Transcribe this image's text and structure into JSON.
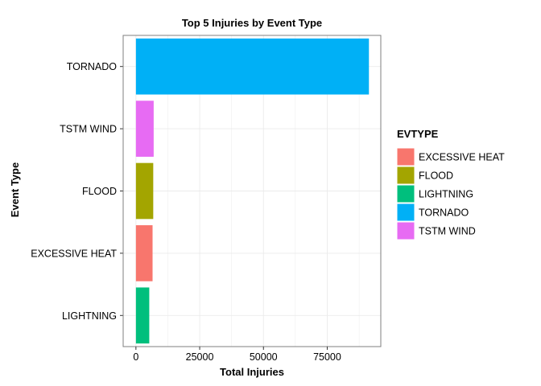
{
  "chart_data": {
    "type": "bar",
    "orientation": "horizontal",
    "title": "Top 5 Injuries by Event Type",
    "xlabel": "Total Injuries",
    "ylabel": "Event Type",
    "categories": [
      "TORNADO",
      "TSTM WIND",
      "FLOOD",
      "EXCESSIVE HEAT",
      "LIGHTNING"
    ],
    "values": [
      91346,
      6957,
      6789,
      6525,
      5230
    ],
    "colors": [
      "#00B0F6",
      "#E76BF3",
      "#A3A500",
      "#F8766D",
      "#00BF7D"
    ],
    "xlim": [
      -5000,
      96000
    ],
    "xticks": [
      0,
      25000,
      50000,
      75000
    ],
    "xtick_labels": [
      "0",
      "25000",
      "50000",
      "75000"
    ],
    "grid": true,
    "legend": {
      "title": "EVTYPE",
      "position": "right",
      "entries": [
        {
          "label": "EXCESSIVE HEAT",
          "color": "#F8766D"
        },
        {
          "label": "FLOOD",
          "color": "#A3A500"
        },
        {
          "label": "LIGHTNING",
          "color": "#00BF7D"
        },
        {
          "label": "TORNADO",
          "color": "#00B0F6"
        },
        {
          "label": "TSTM WIND",
          "color": "#E76BF3"
        }
      ]
    }
  }
}
